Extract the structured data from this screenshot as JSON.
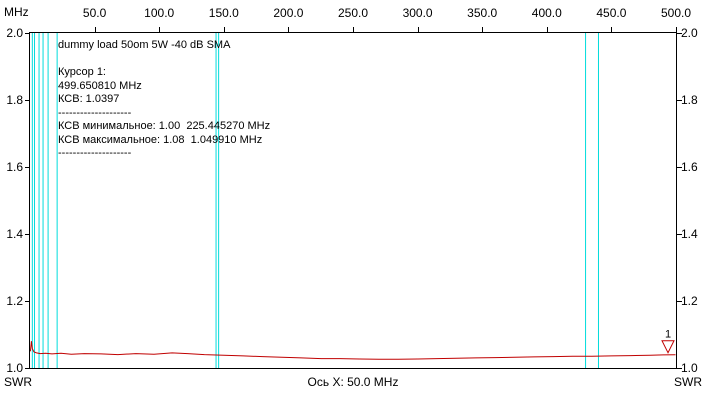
{
  "colors": {
    "trace": "#c00000",
    "band_marker": "#00dcdc",
    "cursor": "#c00000",
    "axis": "#000000",
    "background": "#ffffff"
  },
  "axes": {
    "x_unit_label": "MHz",
    "x_tick_labels": [
      "50.0",
      "100.0",
      "150.0",
      "200.0",
      "250.0",
      "300.0",
      "350.0",
      "400.0",
      "450.0",
      "500.0"
    ],
    "y_tick_labels": [
      "2.0",
      "1.8",
      "1.6",
      "1.4",
      "1.2",
      "1.0"
    ],
    "y_caption_left": "SWR",
    "y_caption_right": "SWR",
    "x_axis_caption": "Ось X: 50.0 MHz"
  },
  "info_panel": {
    "lines": [
      "dummy load 50om 5W -40 dB SMA",
      "",
      "Курсор 1:",
      "499.650810 MHz",
      "КСВ: 1.0397",
      "--------------------",
      "КСВ минимальное: 1.00  225.445270 MHz",
      "КСВ максимальное: 1.08  1.049910 MHz",
      "--------------------"
    ]
  },
  "cursor": {
    "number_label": "1",
    "freq_mhz": 499.65081,
    "swr": 1.0397
  },
  "chart_data": {
    "type": "line",
    "title": "dummy load 50om 5W -40 dB SMA",
    "xlabel": "MHz",
    "ylabel": "SWR",
    "xlim": [
      0,
      500
    ],
    "ylim": [
      1.0,
      2.0
    ],
    "x_tick_step_mhz": 50,
    "y_tick_step": 0.2,
    "grid": false,
    "legend": "none",
    "series": [
      {
        "name": "SWR",
        "color": "#c00000",
        "x": [
          0.3,
          1.05,
          1.8,
          3,
          5,
          8,
          12,
          17,
          24,
          32,
          42,
          55,
          68,
          82,
          96,
          110,
          122,
          135,
          150,
          165,
          180,
          195,
          210,
          225.4,
          240,
          255,
          270,
          285,
          300,
          315,
          330,
          345,
          360,
          375,
          390,
          405,
          420,
          435,
          450,
          465,
          480,
          490,
          499.65
        ],
        "y": [
          1.05,
          1.08,
          1.058,
          1.048,
          1.045,
          1.043,
          1.044,
          1.042,
          1.044,
          1.041,
          1.043,
          1.042,
          1.04,
          1.043,
          1.041,
          1.045,
          1.043,
          1.04,
          1.038,
          1.036,
          1.034,
          1.032,
          1.03,
          1.028,
          1.028,
          1.027,
          1.026,
          1.026,
          1.027,
          1.028,
          1.029,
          1.03,
          1.031,
          1.032,
          1.033,
          1.034,
          1.035,
          1.035,
          1.036,
          1.037,
          1.038,
          1.039,
          1.0397
        ]
      }
    ],
    "band_marker_lines_mhz": [
      1.8,
      3.5,
      7,
      10.1,
      14,
      21,
      144,
      146,
      430,
      440
    ],
    "cursor_marker": {
      "label": "1",
      "freq_mhz": 499.65081,
      "swr": 1.0397
    },
    "swr_min": {
      "value": 1.0,
      "freq_mhz": 225.44527
    },
    "swr_max": {
      "value": 1.08,
      "freq_mhz": 1.04991
    }
  }
}
